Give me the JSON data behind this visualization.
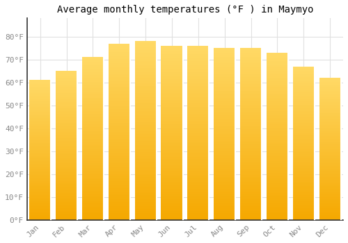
{
  "title": "Average monthly temperatures (°F ) in Maymyo",
  "months": [
    "Jan",
    "Feb",
    "Mar",
    "Apr",
    "May",
    "Jun",
    "Jul",
    "Aug",
    "Sep",
    "Oct",
    "Nov",
    "Dec"
  ],
  "values": [
    61,
    65,
    71,
    77,
    78,
    76,
    76,
    75,
    75,
    73,
    67,
    62
  ],
  "bar_color_bottom": "#F5A800",
  "bar_color_top": "#FFD966",
  "bar_edge_color": "#DDDDDD",
  "background_color": "#FFFFFF",
  "grid_color": "#E0E0E0",
  "ylim": [
    0,
    88
  ],
  "yticks": [
    0,
    10,
    20,
    30,
    40,
    50,
    60,
    70,
    80
  ],
  "ytick_labels": [
    "0°F",
    "10°F",
    "20°F",
    "30°F",
    "40°F",
    "50°F",
    "60°F",
    "70°F",
    "80°F"
  ],
  "title_fontsize": 10,
  "tick_fontsize": 8,
  "font_family": "monospace"
}
